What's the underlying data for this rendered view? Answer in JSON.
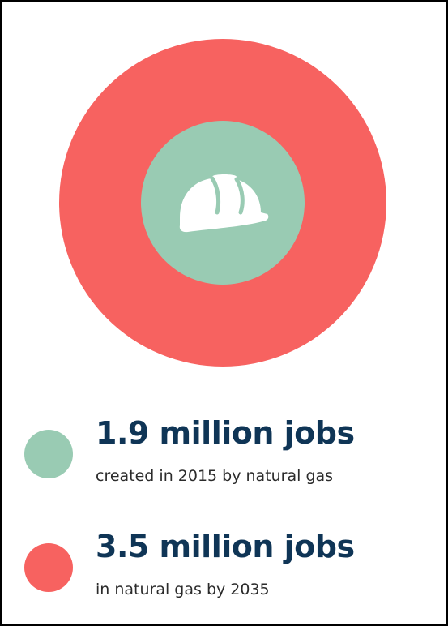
{
  "chart_data": {
    "type": "area",
    "title": "",
    "series": [
      {
        "value": 1.9,
        "unit": "million jobs",
        "label": "1.9 million jobs",
        "caption": "created in 2015 by natural gas",
        "color": "#99cbb3"
      },
      {
        "value": 3.5,
        "unit": "million jobs",
        "label": "3.5 million jobs",
        "caption": "in natural gas by 2035",
        "color": "#f76260"
      }
    ]
  },
  "icon": {
    "name": "hard-hat-icon",
    "color": "#ffffff"
  }
}
